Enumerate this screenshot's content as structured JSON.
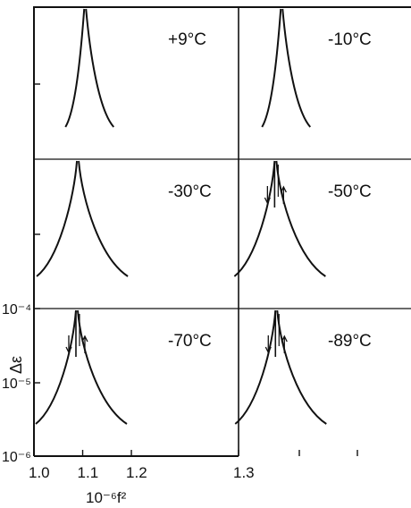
{
  "chart_data": [
    {
      "type": "line",
      "title": "",
      "xlabel": "10⁻⁶f²",
      "ylabel": "Δε",
      "x_ticks": [
        "1.0",
        "1.1",
        "1.2",
        "1.3"
      ],
      "y_ticks": [
        "10⁻⁴",
        "10⁻⁵",
        "10⁻⁶"
      ],
      "yscale": "log",
      "grid": false,
      "panel_layout": "3 rows x 2 columns",
      "panels": [
        {
          "label": "+9°C",
          "peak_x": 1.105,
          "arrows": false
        },
        {
          "label": "-10°C",
          "peak_x": 1.105,
          "arrows": false
        },
        {
          "label": "-30°C",
          "peak_x": 1.09,
          "arrows": false
        },
        {
          "label": "-50°C",
          "peak_x": 1.09,
          "arrows": true
        },
        {
          "label": "-70°C",
          "peak_x": 1.088,
          "arrows": true
        },
        {
          "label": "-89°C",
          "peak_x": 1.092,
          "arrows": true
        }
      ]
    }
  ]
}
